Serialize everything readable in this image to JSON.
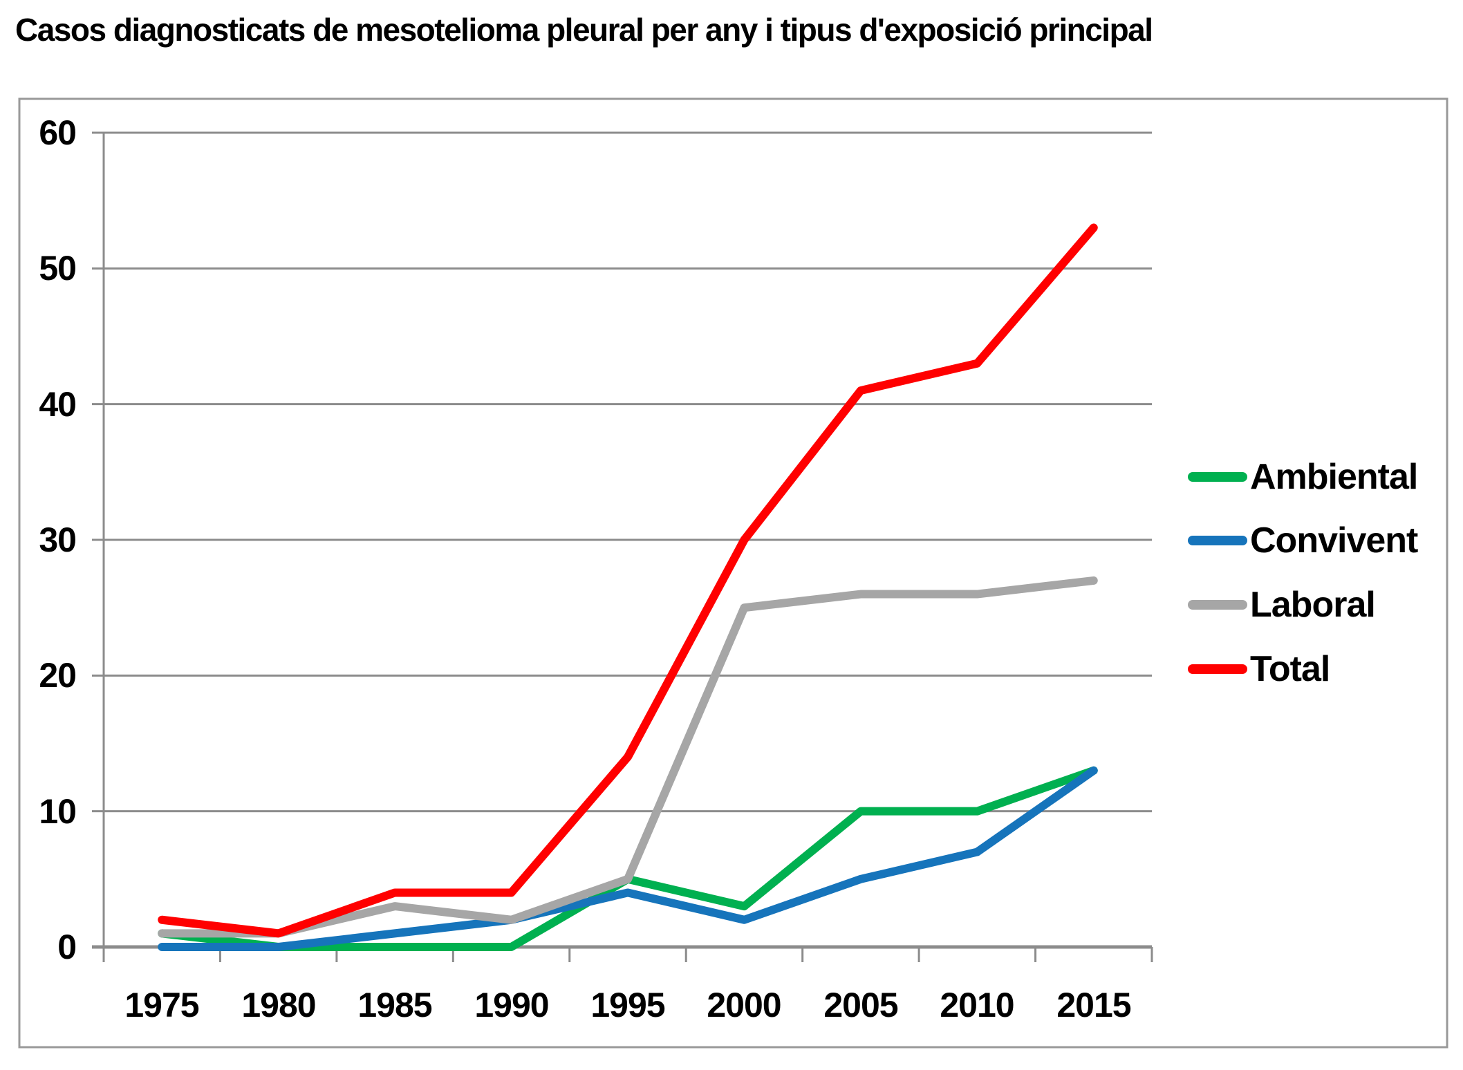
{
  "title": "Casos diagnosticats de mesotelioma pleural per any i tipus d'exposició principal",
  "chart_data": {
    "type": "line",
    "title": "Casos diagnosticats de mesotelioma pleural per any i tipus d'exposició principal",
    "categories": [
      "1975",
      "1980",
      "1985",
      "1990",
      "1995",
      "2000",
      "2005",
      "2010",
      "2015"
    ],
    "series": [
      {
        "name": "Ambiental",
        "color": "#00B050",
        "values": [
          1,
          0,
          0,
          0,
          5,
          3,
          10,
          10,
          13
        ]
      },
      {
        "name": "Convivent",
        "color": "#1674BB",
        "values": [
          0,
          0,
          1,
          2,
          4,
          2,
          5,
          7,
          13
        ]
      },
      {
        "name": "Laboral",
        "color": "#A6A6A6",
        "values": [
          1,
          1,
          3,
          2,
          5,
          25,
          26,
          26,
          27
        ]
      },
      {
        "name": "Total",
        "color": "#FF0000",
        "values": [
          2,
          1,
          4,
          4,
          14,
          30,
          41,
          43,
          53
        ]
      }
    ],
    "xlabel": "",
    "ylabel": "",
    "ylim": [
      0,
      60
    ],
    "y_ticks": [
      "0",
      "10",
      "20",
      "30",
      "40",
      "50",
      "60"
    ],
    "grid": true,
    "legend_position": "right-middle"
  },
  "colors": {
    "background": "#FFFFFF",
    "gridline": "#8C8C8C",
    "frame_border": "#999999",
    "text": "#000000"
  }
}
